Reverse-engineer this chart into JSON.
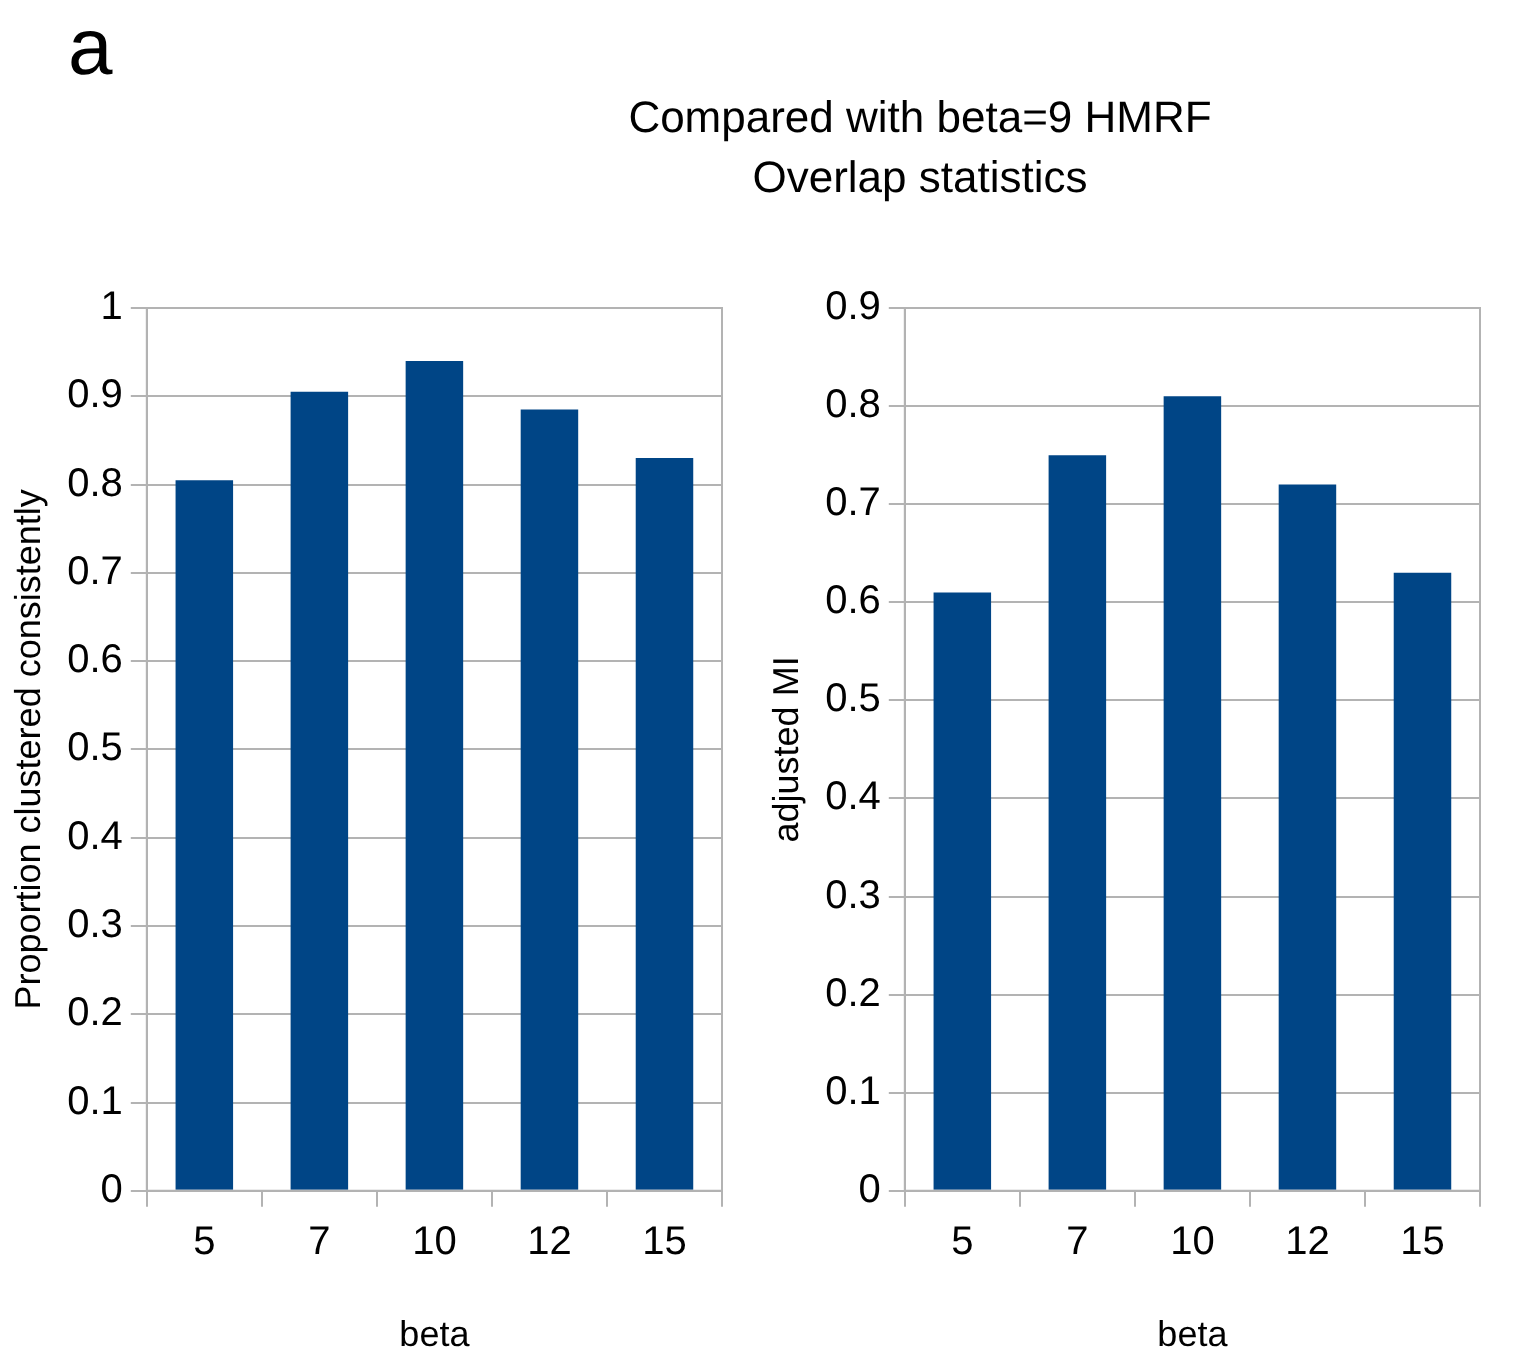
{
  "chart_data": [
    {
      "type": "bar",
      "annotations": [
        "a"
      ],
      "xlabel": "beta",
      "ylabel": "Proportion clustered consistently",
      "categories": [
        "5",
        "7",
        "10",
        "12",
        "15"
      ],
      "values": [
        0.805,
        0.905,
        0.94,
        0.885,
        0.83
      ],
      "color": "#004586",
      "ylim": [
        0,
        1
      ],
      "yticks": [
        0,
        0.1,
        0.2,
        0.3,
        0.4,
        0.5,
        0.6,
        0.7,
        0.8,
        0.9,
        1
      ],
      "grid": "y",
      "legend": false
    },
    {
      "type": "bar",
      "title": "Compared with beta=9 HMRF",
      "subtitle": "Overlap statistics",
      "xlabel": "beta",
      "ylabel": "adjusted MI",
      "categories": [
        "5",
        "7",
        "10",
        "12",
        "15"
      ],
      "values": [
        0.61,
        0.75,
        0.81,
        0.72,
        0.63
      ],
      "color": "#004586",
      "ylim": [
        0,
        0.9
      ],
      "yticks": [
        0,
        0.1,
        0.2,
        0.3,
        0.4,
        0.5,
        0.6,
        0.7,
        0.8,
        0.9
      ],
      "grid": "y",
      "legend": false
    }
  ]
}
